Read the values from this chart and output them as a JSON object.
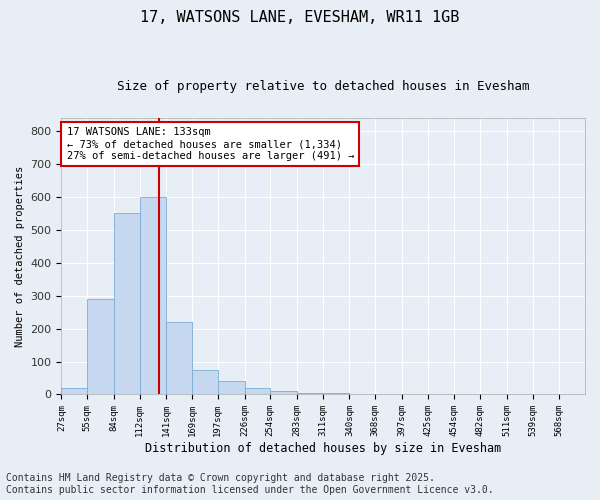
{
  "title_line1": "17, WATSONS LANE, EVESHAM, WR11 1GB",
  "title_line2": "Size of property relative to detached houses in Evesham",
  "xlabel": "Distribution of detached houses by size in Evesham",
  "ylabel": "Number of detached properties",
  "bar_color": "#c5d8f0",
  "bar_edge_color": "#7aadd4",
  "background_color": "#e8eef6",
  "grid_color": "#ffffff",
  "vline_value": 133,
  "vline_color": "#cc0000",
  "annotation_text": "17 WATSONS LANE: 133sqm\n← 73% of detached houses are smaller (1,334)\n27% of semi-detached houses are larger (491) →",
  "annotation_box_color": "#ffffff",
  "annotation_box_edge": "#cc0000",
  "bins": [
    27,
    55,
    84,
    112,
    141,
    169,
    197,
    226,
    254,
    283,
    311,
    340,
    368,
    397,
    425,
    454,
    482,
    511,
    539,
    568,
    596
  ],
  "bar_heights": [
    20,
    290,
    550,
    600,
    220,
    75,
    40,
    20,
    10,
    3,
    3,
    0,
    0,
    0,
    0,
    0,
    0,
    0,
    0,
    0
  ],
  "ylim": [
    0,
    840
  ],
  "yticks": [
    0,
    100,
    200,
    300,
    400,
    500,
    600,
    700,
    800
  ],
  "footnote": "Contains HM Land Registry data © Crown copyright and database right 2025.\nContains public sector information licensed under the Open Government Licence v3.0.",
  "footnote_fontsize": 7
}
